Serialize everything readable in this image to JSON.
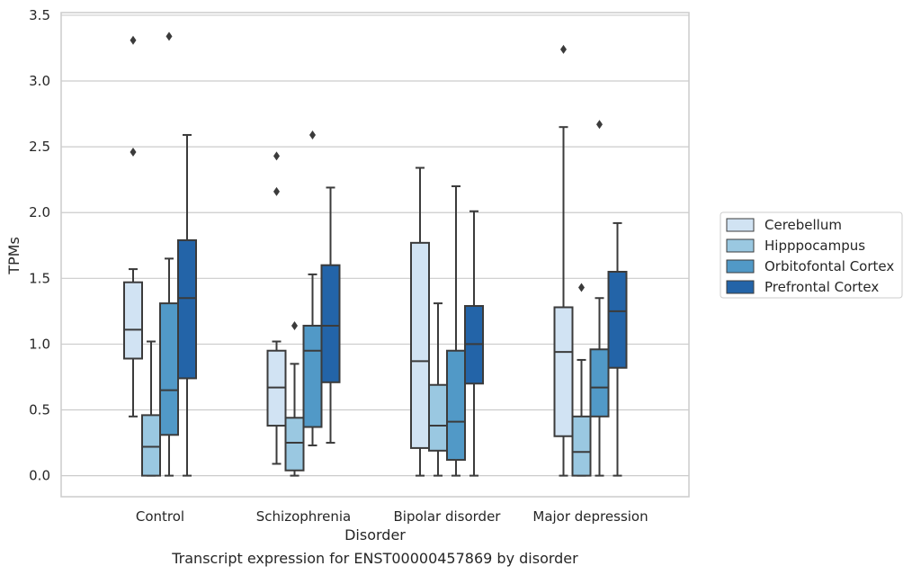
{
  "chart_data": {
    "type": "box",
    "title": "",
    "caption": "Transcript expression for ENST00000457869 by disorder",
    "xlabel": "Disorder",
    "ylabel": "TPMs",
    "ylim": [
      -0.16,
      3.52
    ],
    "yticks": [
      0.0,
      0.5,
      1.0,
      1.5,
      2.0,
      2.5,
      3.0,
      3.5
    ],
    "ytick_labels": [
      "0.0",
      "0.5",
      "1.0",
      "1.5",
      "2.0",
      "2.5",
      "3.0",
      "3.5"
    ],
    "grid": true,
    "legend_position": "right",
    "categories": [
      "Control",
      "Schizophrenia",
      "Bipolar disorder",
      "Major depression"
    ],
    "series": [
      {
        "name": "Cerebellum",
        "color": "#d1e3f3",
        "boxes": [
          {
            "whisker_low": 0.45,
            "q1": 0.89,
            "median": 1.11,
            "q3": 1.47,
            "whisker_high": 1.57,
            "outliers": [
              2.46,
              3.31
            ]
          },
          {
            "whisker_low": 0.09,
            "q1": 0.38,
            "median": 0.67,
            "q3": 0.95,
            "whisker_high": 1.02,
            "outliers": [
              2.16,
              2.43
            ]
          },
          {
            "whisker_low": 0.0,
            "q1": 0.21,
            "median": 0.87,
            "q3": 1.77,
            "whisker_high": 2.34,
            "outliers": []
          },
          {
            "whisker_low": 0.0,
            "q1": 0.3,
            "median": 0.94,
            "q3": 1.28,
            "whisker_high": 2.65,
            "outliers": [
              3.24
            ]
          }
        ]
      },
      {
        "name": "Hipppocampus",
        "color": "#9ac8e1",
        "boxes": [
          {
            "whisker_low": 0.0,
            "q1": 0.0,
            "median": 0.22,
            "q3": 0.46,
            "whisker_high": 1.02,
            "outliers": []
          },
          {
            "whisker_low": 0.0,
            "q1": 0.04,
            "median": 0.25,
            "q3": 0.44,
            "whisker_high": 0.85,
            "outliers": [
              1.14
            ]
          },
          {
            "whisker_low": 0.0,
            "q1": 0.19,
            "median": 0.38,
            "q3": 0.69,
            "whisker_high": 1.31,
            "outliers": []
          },
          {
            "whisker_low": 0.0,
            "q1": 0.0,
            "median": 0.18,
            "q3": 0.45,
            "whisker_high": 0.88,
            "outliers": [
              1.43
            ]
          }
        ]
      },
      {
        "name": "Orbitofontal Cortex",
        "color": "#5199c7",
        "boxes": [
          {
            "whisker_low": 0.0,
            "q1": 0.31,
            "median": 0.65,
            "q3": 1.31,
            "whisker_high": 1.65,
            "outliers": [
              3.34
            ]
          },
          {
            "whisker_low": 0.23,
            "q1": 0.37,
            "median": 0.95,
            "q3": 1.14,
            "whisker_high": 1.53,
            "outliers": [
              2.59
            ]
          },
          {
            "whisker_low": 0.0,
            "q1": 0.12,
            "median": 0.41,
            "q3": 0.95,
            "whisker_high": 2.2,
            "outliers": []
          },
          {
            "whisker_low": 0.0,
            "q1": 0.45,
            "median": 0.67,
            "q3": 0.96,
            "whisker_high": 1.35,
            "outliers": [
              2.67
            ]
          }
        ]
      },
      {
        "name": "Prefrontal Cortex",
        "color": "#2364a8",
        "boxes": [
          {
            "whisker_low": 0.0,
            "q1": 0.74,
            "median": 1.35,
            "q3": 1.79,
            "whisker_high": 2.59,
            "outliers": []
          },
          {
            "whisker_low": 0.25,
            "q1": 0.71,
            "median": 1.14,
            "q3": 1.6,
            "whisker_high": 2.19,
            "outliers": []
          },
          {
            "whisker_low": 0.0,
            "q1": 0.7,
            "median": 1.0,
            "q3": 1.29,
            "whisker_high": 2.01,
            "outliers": []
          },
          {
            "whisker_low": 0.0,
            "q1": 0.82,
            "median": 1.25,
            "q3": 1.55,
            "whisker_high": 1.92,
            "outliers": []
          }
        ]
      }
    ]
  }
}
